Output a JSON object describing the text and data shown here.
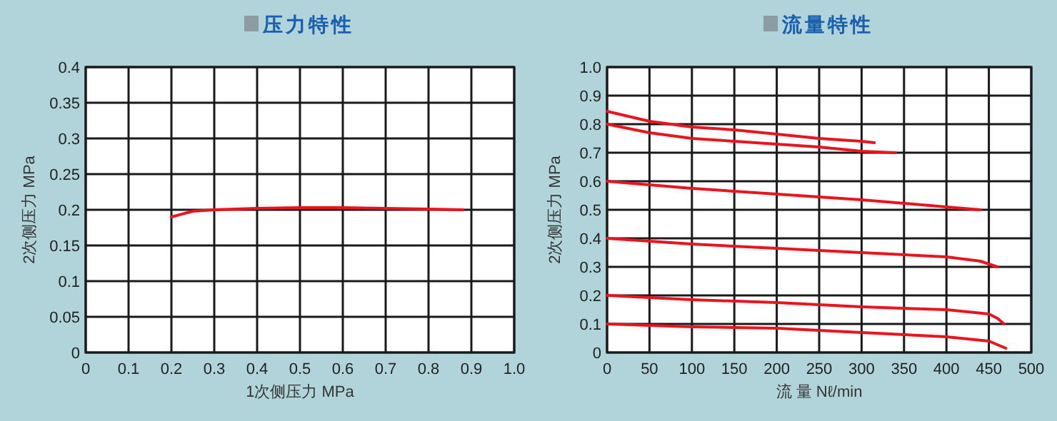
{
  "chart_data": [
    {
      "type": "line",
      "title": "压力特性",
      "xlabel": "1次侧压力  MPa",
      "ylabel": "2次侧压力  MPa",
      "xlim": [
        0,
        1
      ],
      "ylim": [
        0,
        0.4
      ],
      "xticks": [
        0,
        0.1,
        0.2,
        0.3,
        0.4,
        0.5,
        0.6,
        0.7,
        0.8,
        0.9,
        {
          "value": 1,
          "label": "1.0"
        }
      ],
      "yticks": [
        0,
        0.05,
        0.1,
        0.15,
        0.2,
        0.25,
        0.3,
        0.35,
        0.4
      ],
      "grid": true,
      "series": [
        {
          "color": "#e8141e",
          "x": [
            0.2,
            0.25,
            0.3,
            0.4,
            0.5,
            0.6,
            0.7,
            0.8,
            0.88
          ],
          "values": [
            0.19,
            0.198,
            0.2,
            0.202,
            0.203,
            0.203,
            0.202,
            0.201,
            0.2
          ]
        }
      ]
    },
    {
      "type": "line",
      "title": "流量特性",
      "xlabel": "流 量  Nℓ/min",
      "ylabel": "2次侧压力  MPa",
      "xlim": [
        0,
        500
      ],
      "ylim": [
        0,
        1
      ],
      "xticks": [
        0,
        50,
        100,
        150,
        200,
        250,
        300,
        350,
        400,
        450,
        500
      ],
      "yticks": [
        0,
        0.1,
        0.2,
        0.3,
        0.4,
        0.5,
        0.6,
        0.7,
        0.8,
        0.9,
        {
          "value": 1,
          "label": "1.0"
        }
      ],
      "grid": true,
      "series": [
        {
          "color": "#e8141e",
          "x": [
            0,
            50,
            100,
            150,
            200,
            250,
            300,
            315
          ],
          "values": [
            0.845,
            0.81,
            0.79,
            0.78,
            0.765,
            0.75,
            0.74,
            0.735
          ]
        },
        {
          "color": "#e8141e",
          "x": [
            0,
            50,
            100,
            150,
            200,
            250,
            300,
            340
          ],
          "values": [
            0.8,
            0.77,
            0.75,
            0.74,
            0.73,
            0.72,
            0.705,
            0.7
          ]
        },
        {
          "color": "#e8141e",
          "x": [
            0,
            100,
            200,
            300,
            400,
            440
          ],
          "values": [
            0.6,
            0.575,
            0.555,
            0.535,
            0.51,
            0.5
          ]
        },
        {
          "color": "#e8141e",
          "x": [
            0,
            100,
            200,
            300,
            400,
            440,
            460
          ],
          "values": [
            0.4,
            0.38,
            0.365,
            0.35,
            0.335,
            0.32,
            0.3
          ]
        },
        {
          "color": "#e8141e",
          "x": [
            0,
            100,
            200,
            300,
            400,
            450,
            460,
            468
          ],
          "values": [
            0.2,
            0.185,
            0.175,
            0.16,
            0.15,
            0.135,
            0.12,
            0.1
          ]
        },
        {
          "color": "#e8141e",
          "x": [
            0,
            100,
            200,
            300,
            400,
            450,
            470
          ],
          "values": [
            0.1,
            0.09,
            0.085,
            0.07,
            0.055,
            0.04,
            0.015
          ]
        }
      ]
    }
  ]
}
